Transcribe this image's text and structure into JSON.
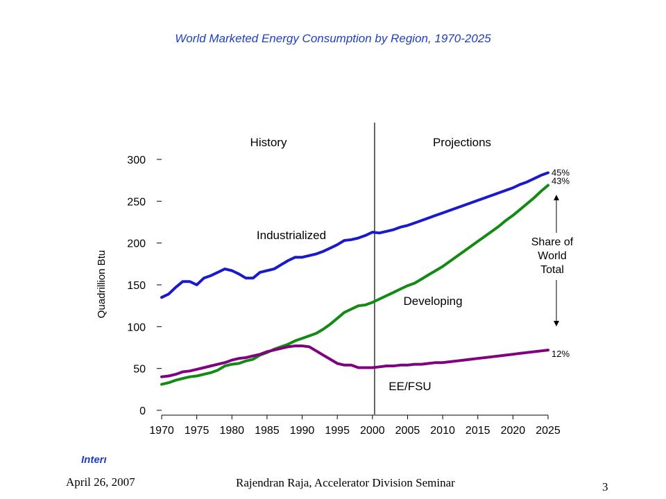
{
  "slide": {
    "title": "World Marketed Energy Consumption by Region, 1970-2025",
    "note_fragment": "Interı",
    "footer_date": "April 26, 2007",
    "footer_center": "Rajendran Raja, Accelerator Division Seminar",
    "page_number": "3"
  },
  "chart_data": {
    "type": "line",
    "title": "",
    "xlabel": "",
    "ylabel": "Quadrillion Btu",
    "xlim": [
      1970,
      2025
    ],
    "ylim": [
      0,
      300
    ],
    "x_ticks": [
      "1970",
      "1975",
      "1980",
      "1985",
      "1990",
      "1995",
      "2000",
      "2005",
      "2010",
      "2015",
      "2020",
      "2025"
    ],
    "y_ticks": [
      "0",
      "50",
      "100",
      "150",
      "200",
      "250",
      "300"
    ],
    "grid": false,
    "legend": "none (series labeled inline)",
    "divider_year": 2001,
    "section_labels": [
      "History",
      "Projections"
    ],
    "annotation": "Share of\nWorld\nTotal",
    "x": [
      1970,
      1971,
      1972,
      1973,
      1974,
      1975,
      1976,
      1977,
      1978,
      1979,
      1980,
      1981,
      1982,
      1983,
      1984,
      1985,
      1986,
      1987,
      1988,
      1989,
      1990,
      1991,
      1992,
      1993,
      1994,
      1995,
      1996,
      1997,
      1998,
      1999,
      2000,
      2001,
      2002,
      2003,
      2004,
      2005,
      2006,
      2007,
      2008,
      2009,
      2010,
      2011,
      2012,
      2013,
      2014,
      2015,
      2016,
      2017,
      2018,
      2019,
      2020,
      2021,
      2022,
      2023,
      2024,
      2025
    ],
    "series": [
      {
        "name": "Industrialized",
        "color": "#1a1acc",
        "end_label": "45%",
        "values": [
          135,
          139,
          147,
          154,
          154,
          150,
          158,
          161,
          165,
          169,
          167,
          163,
          158,
          158,
          165,
          167,
          169,
          174,
          179,
          183,
          183,
          185,
          187,
          190,
          194,
          198,
          203,
          204,
          206,
          209,
          213,
          212,
          214,
          216,
          219,
          221,
          224,
          227,
          230,
          233,
          236,
          239,
          242,
          245,
          248,
          251,
          254,
          257,
          260,
          263,
          266,
          270,
          273,
          277,
          281,
          284
        ]
      },
      {
        "name": "Developing",
        "color": "#138a13",
        "end_label": "43%",
        "values": [
          31,
          33,
          36,
          38,
          40,
          41,
          43,
          45,
          48,
          53,
          55,
          56,
          59,
          61,
          66,
          69,
          73,
          76,
          79,
          83,
          86,
          89,
          92,
          97,
          103,
          110,
          117,
          121,
          125,
          126,
          129,
          133,
          137,
          141,
          145,
          149,
          152,
          157,
          162,
          167,
          172,
          178,
          184,
          190,
          196,
          202,
          208,
          214,
          220,
          227,
          233,
          240,
          247,
          254,
          262,
          269
        ]
      },
      {
        "name": "EE/FSU",
        "color": "#800080",
        "end_label": "12%",
        "values": [
          40,
          41,
          43,
          46,
          47,
          49,
          51,
          53,
          55,
          57,
          60,
          62,
          63,
          65,
          67,
          70,
          72,
          74,
          76,
          77,
          77,
          76,
          71,
          66,
          61,
          56,
          54,
          54,
          51,
          51,
          51,
          52,
          53,
          53,
          54,
          54,
          55,
          55,
          56,
          57,
          57,
          58,
          59,
          60,
          61,
          62,
          63,
          64,
          65,
          66,
          67,
          68,
          69,
          70,
          71,
          72
        ]
      }
    ]
  }
}
